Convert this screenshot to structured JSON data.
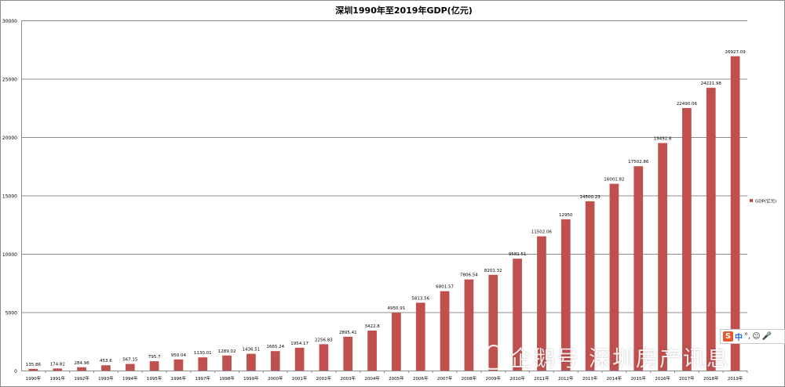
{
  "chart_data": {
    "type": "bar",
    "title": "深圳1990年至2019年GDP(亿元)",
    "xlabel": "",
    "ylabel": "",
    "ylim": [
      0,
      30000
    ],
    "yticks": [
      0,
      5000,
      10000,
      15000,
      20000,
      25000,
      30000
    ],
    "grid": true,
    "legend_position": "right",
    "bar_color": "#c0504d",
    "categories": [
      "1990年",
      "1991年",
      "1992年",
      "1993年",
      "1994年",
      "1995年",
      "1996年",
      "1997年",
      "1998年",
      "1999年",
      "2000年",
      "2001年",
      "2002年",
      "2003年",
      "2004年",
      "2005年",
      "2006年",
      "2007年",
      "2008年",
      "2009年",
      "2010年",
      "2011年",
      "2012年",
      "2013年",
      "2014年",
      "2015年",
      "2016年",
      "2017年",
      "2018年",
      "2019年"
    ],
    "series": [
      {
        "name": "GDP(亿元)",
        "values": [
          135.86,
          174.82,
          284.96,
          453.6,
          567.15,
          795.7,
          950.04,
          1130.01,
          1289.02,
          1436.51,
          1665.24,
          1954.17,
          2256.83,
          2895.41,
          3422.8,
          4950.91,
          5813.56,
          6801.57,
          7806.54,
          8201.32,
          9581.51,
          11502.06,
          12950,
          14500.23,
          16001.82,
          17502.86,
          19492.6,
          22490.06,
          24221.98,
          26927.09
        ],
        "labels": [
          "135.86",
          "174.82",
          "284.96",
          "453.6",
          "567.15",
          "795.7",
          "950.04",
          "1130.01",
          "1289.02",
          "1436.51",
          "1665.24",
          "1954.17",
          "2256.83",
          "2895.41",
          "3422.8",
          "4950.91",
          "5813.56",
          "6801.57",
          "7806.54",
          "8201.32",
          "9581.51",
          "11502.06",
          "12950",
          "14500.23",
          "16001.82",
          "17502.86",
          "19492.6",
          "22490.06",
          "24221.98",
          "26927.09"
        ]
      }
    ]
  },
  "overlay": {
    "ime_logo": "S",
    "ime_mode": "中",
    "ime_punct": "°,",
    "ime_emoji": "☺",
    "ime_mic": "🎤",
    "watermark_text": "企鹅号 深圳房产讯息"
  }
}
